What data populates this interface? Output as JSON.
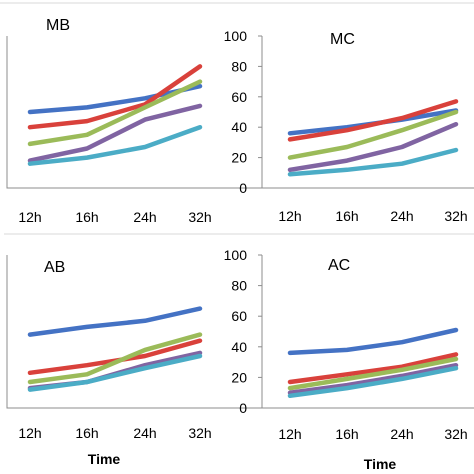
{
  "chart_data": [
    {
      "type": "line",
      "title": "MB",
      "xlabel": "",
      "ylabel": "",
      "categories": [
        "12h",
        "16h",
        "24h",
        "32h"
      ],
      "ylim": [
        0,
        100
      ],
      "y_ticks_visible": false,
      "series": [
        {
          "color": "#4472C4",
          "values": [
            50,
            53,
            59,
            67
          ]
        },
        {
          "color": "#D9413B",
          "values": [
            40,
            44,
            55,
            80
          ]
        },
        {
          "color": "#9BBB59",
          "values": [
            29,
            35,
            53,
            70
          ]
        },
        {
          "color": "#8064A2",
          "values": [
            18,
            26,
            45,
            54
          ]
        },
        {
          "color": "#4BACC6",
          "values": [
            16,
            20,
            27,
            40
          ]
        }
      ]
    },
    {
      "type": "line",
      "title": "MC",
      "xlabel": "",
      "ylabel": "",
      "categories": [
        "12h",
        "16h",
        "24h",
        "32h"
      ],
      "ylim": [
        0,
        100
      ],
      "y_ticks": [
        "0",
        "20",
        "40",
        "60",
        "80",
        "100"
      ],
      "series": [
        {
          "color": "#4472C4",
          "values": [
            36,
            40,
            45,
            51
          ]
        },
        {
          "color": "#D9413B",
          "values": [
            32,
            38,
            46,
            57
          ]
        },
        {
          "color": "#9BBB59",
          "values": [
            20,
            27,
            38,
            50
          ]
        },
        {
          "color": "#8064A2",
          "values": [
            12,
            18,
            27,
            42
          ]
        },
        {
          "color": "#4BACC6",
          "values": [
            9,
            12,
            16,
            25
          ]
        }
      ]
    },
    {
      "type": "line",
      "title": "AB",
      "xlabel": "Time",
      "ylabel": "",
      "categories": [
        "12h",
        "16h",
        "24h",
        "32h"
      ],
      "ylim": [
        0,
        100
      ],
      "y_ticks_visible": false,
      "series": [
        {
          "color": "#4472C4",
          "values": [
            48,
            53,
            57,
            65
          ]
        },
        {
          "color": "#D9413B",
          "values": [
            23,
            28,
            34,
            44
          ]
        },
        {
          "color": "#9BBB59",
          "values": [
            17,
            22,
            38,
            48
          ]
        },
        {
          "color": "#8064A2",
          "values": [
            13,
            17,
            28,
            36
          ]
        },
        {
          "color": "#4BACC6",
          "values": [
            12,
            17,
            26,
            34
          ]
        }
      ]
    },
    {
      "type": "line",
      "title": "AC",
      "xlabel": "Time",
      "ylabel": "",
      "categories": [
        "12h",
        "16h",
        "24h",
        "32h"
      ],
      "ylim": [
        0,
        100
      ],
      "y_ticks": [
        "0",
        "20",
        "40",
        "60",
        "80",
        "100"
      ],
      "series": [
        {
          "color": "#4472C4",
          "values": [
            36,
            38,
            43,
            51
          ]
        },
        {
          "color": "#D9413B",
          "values": [
            17,
            22,
            27,
            35
          ]
        },
        {
          "color": "#9BBB59",
          "values": [
            13,
            19,
            25,
            32
          ]
        },
        {
          "color": "#8064A2",
          "values": [
            10,
            15,
            21,
            28
          ]
        },
        {
          "color": "#4BACC6",
          "values": [
            8,
            13,
            19,
            26
          ]
        }
      ]
    }
  ]
}
